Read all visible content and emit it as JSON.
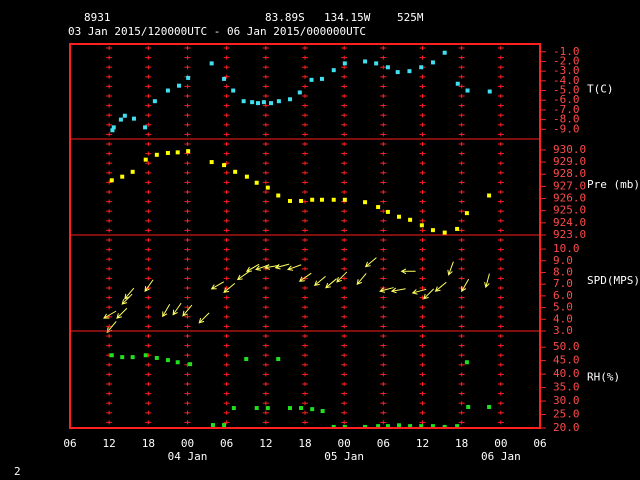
{
  "header": {
    "station": "8931",
    "lat": "83.89S",
    "lon": "134.15W",
    "elev": "525M",
    "period": "03 Jan 2015/120000UTC - 06 Jan 2015/000000UTC"
  },
  "footer": "2",
  "chart_data": [
    {
      "type": "scatter",
      "label": "T(C)",
      "color": "#40e0f0",
      "ylim": [
        -10,
        -0.2
      ],
      "yticks": [
        {
          "value": -1,
          "label": "-1.0"
        },
        {
          "value": -2,
          "label": "-2.0"
        },
        {
          "value": -3,
          "label": "-3.0"
        },
        {
          "value": -4,
          "label": "-4.0"
        },
        {
          "value": -5,
          "label": "-5.0"
        },
        {
          "value": -6,
          "label": "-6.0"
        },
        {
          "value": -7,
          "label": "-7.0"
        },
        {
          "value": -8,
          "label": "-8.0"
        },
        {
          "value": -9,
          "label": "-9.0"
        }
      ],
      "x": [
        6.5,
        6.7,
        7.8,
        8.4,
        9.8,
        11.5,
        13,
        15,
        16.7,
        18.1,
        21.7,
        23.6,
        25,
        26.6,
        27.9,
        28.8,
        29.7,
        30.8,
        32,
        33.7,
        35.2,
        37,
        38.6,
        40.4,
        42.1,
        45.2,
        46.9,
        48.7,
        50.2,
        52,
        53.8,
        55.6,
        57.4,
        59.4,
        60.9,
        64.3
      ],
      "values": [
        -9.1,
        -8.8,
        -8.0,
        -7.6,
        -7.9,
        -8.8,
        -6.1,
        -5.0,
        -4.5,
        -3.7,
        -2.2,
        -3.8,
        -5.0,
        -6.1,
        -6.2,
        -6.3,
        -6.2,
        -6.3,
        -6.1,
        -5.9,
        -5.2,
        -3.9,
        -3.8,
        -2.9,
        -2.2,
        -2.0,
        -2.2,
        -2.6,
        -3.1,
        -3.0,
        -2.6,
        -2.1,
        -1.1,
        -4.3,
        -5.0,
        -5.1
      ]
    },
    {
      "type": "scatter",
      "label": "Pre (mb)",
      "color": "#ffff00",
      "ylim": [
        923,
        930.9
      ],
      "yticks": [
        {
          "value": 930,
          "label": "930.0"
        },
        {
          "value": 929,
          "label": "929.0"
        },
        {
          "value": 928,
          "label": "928.0"
        },
        {
          "value": 927,
          "label": "927.0"
        },
        {
          "value": 926,
          "label": "926.0"
        },
        {
          "value": 925,
          "label": "925.0"
        },
        {
          "value": 924,
          "label": "924.0"
        },
        {
          "value": 923,
          "label": "923.0"
        }
      ],
      "x": [
        6.4,
        8,
        9.6,
        11.6,
        13.3,
        15,
        16.5,
        18.1,
        21.7,
        23.6,
        25.3,
        27.1,
        28.6,
        30.3,
        31.9,
        33.7,
        35.4,
        37.1,
        38.6,
        40.4,
        42.1,
        45.2,
        47.2,
        48.7,
        50.4,
        52.1,
        53.9,
        55.6,
        57.4,
        59.3,
        60.8,
        64.2
      ],
      "values": [
        927.5,
        927.8,
        928.2,
        929.2,
        929.6,
        929.75,
        929.8,
        929.9,
        929.0,
        928.75,
        928.2,
        927.8,
        927.3,
        926.9,
        926.25,
        925.8,
        925.8,
        925.9,
        925.9,
        925.9,
        925.9,
        925.7,
        925.3,
        924.9,
        924.5,
        924.25,
        923.8,
        923.4,
        923.2,
        923.5,
        924.8,
        926.25
      ]
    },
    {
      "type": "wind",
      "label": "SPD(MPS)",
      "color": "#ffff60",
      "ylim": [
        3,
        11.2
      ],
      "yticks": [
        {
          "value": 10,
          "label": "10.0"
        },
        {
          "value": 9,
          "label": "9.0"
        },
        {
          "value": 8,
          "label": "8.0"
        },
        {
          "value": 7,
          "label": "7.0"
        },
        {
          "value": 6,
          "label": "6.0"
        },
        {
          "value": 5,
          "label": "5.0"
        },
        {
          "value": 4,
          "label": "4.0"
        },
        {
          "value": 3,
          "label": "3.0"
        }
      ],
      "x": [
        5.2,
        5.7,
        7.2,
        8.0,
        8.4,
        11.5,
        14.2,
        15.8,
        17.3,
        19.8,
        21.7,
        23.6,
        25.7,
        27.1,
        28.5,
        29.9,
        31.5,
        33.4,
        35.2,
        37.5,
        39.2,
        40.9,
        44,
        45.3,
        47.5,
        49.3,
        50.8,
        52.5,
        54.2,
        56,
        58,
        60,
        63.7
      ],
      "values": [
        4.1,
        2.9,
        4.1,
        5.3,
        5.75,
        6.4,
        4.25,
        4.4,
        4.3,
        3.7,
        6.6,
        6.3,
        7.4,
        8.1,
        8.25,
        8.4,
        8.4,
        8.25,
        7.25,
        6.9,
        6.7,
        7.2,
        7.0,
        8.5,
        6.4,
        6.4,
        8.1,
        6.25,
        5.75,
        6.4,
        7.8,
        6.4,
        6.75
      ],
      "directions": [
        60,
        40,
        45,
        45,
        40,
        35,
        30,
        35,
        40,
        45,
        60,
        50,
        55,
        60,
        70,
        80,
        75,
        70,
        55,
        50,
        50,
        45,
        40,
        50,
        75,
        80,
        90,
        75,
        45,
        50,
        20,
        30,
        15
      ]
    },
    {
      "type": "scatter",
      "label": "RH(%)",
      "color": "#20e020",
      "ylim": [
        20,
        56
      ],
      "yticks": [
        {
          "value": 50,
          "label": "50.0"
        },
        {
          "value": 45,
          "label": "45.0"
        },
        {
          "value": 40,
          "label": "40.0"
        },
        {
          "value": 35,
          "label": "35.0"
        },
        {
          "value": 30,
          "label": "30.0"
        },
        {
          "value": 25,
          "label": "25.0"
        },
        {
          "value": 20,
          "label": "20.0"
        }
      ],
      "x": [
        6.4,
        8,
        9.6,
        11.6,
        13.3,
        15,
        16.5,
        18.4,
        21.9,
        23.6,
        25.1,
        27,
        28.6,
        30.3,
        31.9,
        33.7,
        35.4,
        37.1,
        38.7,
        40.4,
        42.1,
        45.2,
        47.2,
        48.7,
        50.4,
        52.1,
        53.8,
        55.6,
        57.4,
        59.3,
        60.8,
        61,
        64.2
      ],
      "values": [
        47,
        46.3,
        46.3,
        47,
        46,
        45.2,
        44.4,
        43.7,
        21.1,
        21.1,
        27.4,
        45.6,
        27.4,
        27.4,
        45.6,
        27.4,
        27.4,
        27,
        26.3,
        20.4,
        20.4,
        20.4,
        20.7,
        20.7,
        21,
        20.7,
        20.7,
        20.7,
        20.4,
        20.7,
        44.4,
        27.8,
        27.8
      ],
      "xlim": [
        0,
        72
      ],
      "xticks": [
        {
          "value": 0,
          "label": "06"
        },
        {
          "value": 6,
          "label": "12"
        },
        {
          "value": 12,
          "label": "18"
        },
        {
          "value": 18,
          "label": "00"
        },
        {
          "value": 24,
          "label": "06"
        },
        {
          "value": 30,
          "label": "12"
        },
        {
          "value": 36,
          "label": "18"
        },
        {
          "value": 42,
          "label": "00"
        },
        {
          "value": 48,
          "label": "06"
        },
        {
          "value": 54,
          "label": "12"
        },
        {
          "value": 60,
          "label": "18"
        },
        {
          "value": 66,
          "label": "00"
        },
        {
          "value": 72,
          "label": "06"
        }
      ],
      "date_labels": [
        {
          "value": 18,
          "label": "04 Jan"
        },
        {
          "value": 42,
          "label": "05 Jan"
        },
        {
          "value": 66,
          "label": "06 Jan"
        }
      ]
    }
  ]
}
